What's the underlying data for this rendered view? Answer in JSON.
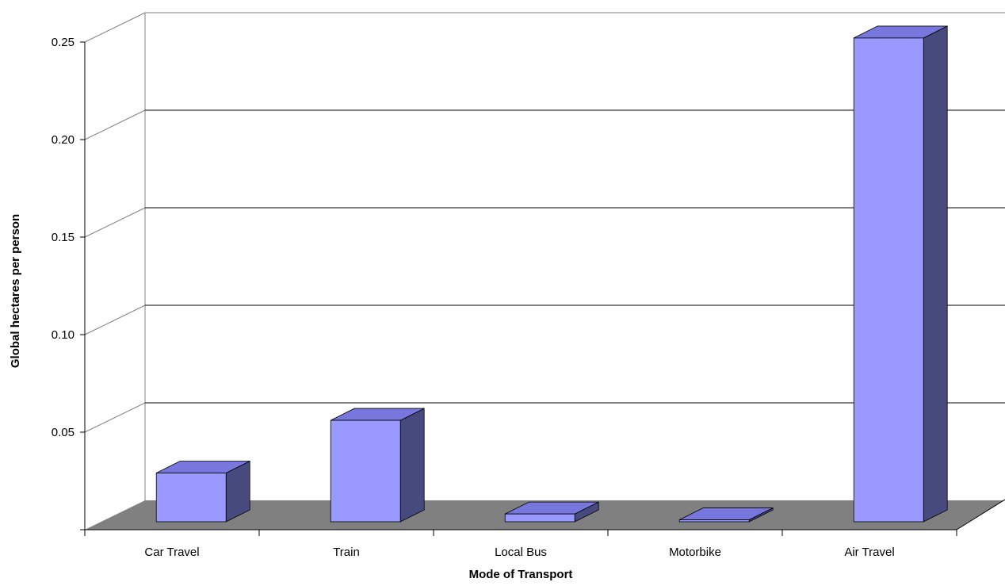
{
  "chart_data": {
    "type": "bar",
    "categories": [
      "Car Travel",
      "Train",
      "Local Bus",
      "Motorbike",
      "Air Travel"
    ],
    "values": [
      0.025,
      0.052,
      0.004,
      0.001,
      0.248
    ],
    "title": "",
    "xlabel": "Mode of Transport",
    "ylabel": "Global hectares per person",
    "ylim": [
      0,
      0.25
    ],
    "yticks": [
      "0.25",
      "0.20",
      "0.15",
      "0.10",
      "0.05"
    ],
    "grid": true,
    "legend": "none",
    "colors": {
      "bar_front": "#9999ff",
      "bar_top": "#7777dd",
      "bar_side": "#474a7c",
      "floor": "#808080",
      "gridline": "#000000",
      "back_wall_edge": "#808080"
    }
  }
}
